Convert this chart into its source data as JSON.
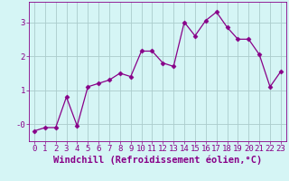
{
  "x": [
    0,
    1,
    2,
    3,
    4,
    5,
    6,
    7,
    8,
    9,
    10,
    11,
    12,
    13,
    14,
    15,
    16,
    17,
    18,
    19,
    20,
    21,
    22,
    23
  ],
  "y": [
    -0.2,
    -0.1,
    -0.1,
    0.8,
    -0.05,
    1.1,
    1.2,
    1.3,
    1.5,
    1.4,
    2.15,
    2.15,
    1.8,
    1.7,
    3.0,
    2.6,
    3.05,
    3.3,
    2.85,
    2.5,
    2.5,
    2.05,
    1.1,
    1.55
  ],
  "line_color": "#880088",
  "marker": "D",
  "marker_size": 2.5,
  "bg_color": "#d5f5f5",
  "grid_color": "#aacccc",
  "xlabel": "Windchill (Refroidissement éolien,°C)",
  "xlabel_fontsize": 7.5,
  "tick_fontsize": 6.5,
  "ylim": [
    -0.5,
    3.6
  ],
  "yticks": [
    0,
    1,
    2,
    3
  ],
  "ytick_labels": [
    "-0",
    "1",
    "2",
    "3"
  ]
}
